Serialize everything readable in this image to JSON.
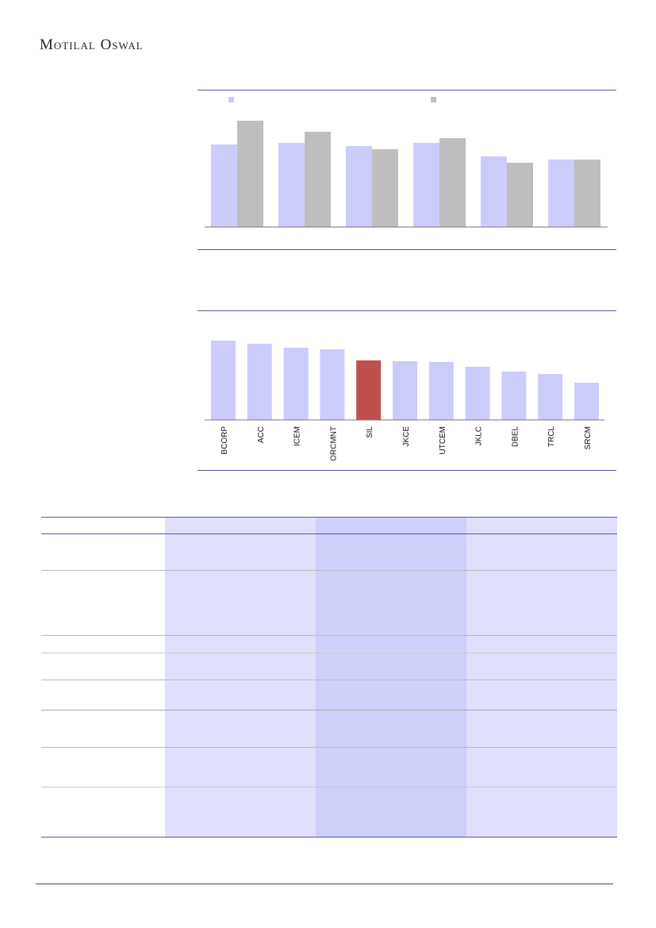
{
  "header": {
    "logo_text": "Motilal Oswal"
  },
  "colors": {
    "series1": "#ccccfc",
    "series2": "#bebebe",
    "highlight": "#c0504d",
    "rule": "#5a4fb5"
  },
  "chart_data": [
    {
      "type": "bar",
      "title": "",
      "categories": [
        "",
        "",
        "",
        "",
        "",
        ""
      ],
      "series": [
        {
          "name": "",
          "values": [
            104,
            106,
            102,
            106,
            89,
            85
          ]
        },
        {
          "name": "",
          "values": [
            134,
            120,
            98,
            112,
            81,
            85
          ]
        }
      ],
      "legend": "top",
      "ylim": [
        0,
        140
      ]
    },
    {
      "type": "bar",
      "title": "",
      "categories": [
        "BCORP",
        "ACC",
        "ICEM",
        "ORCMNT",
        "SIL",
        "JKCE",
        "UTCEM",
        "JKLC",
        "DBEL",
        "TRCL",
        "SRCM"
      ],
      "values": [
        100,
        96,
        91,
        89,
        75,
        74,
        73,
        67,
        61,
        58,
        47
      ],
      "highlight": "SIL",
      "ylim": [
        0,
        110
      ]
    }
  ]
}
